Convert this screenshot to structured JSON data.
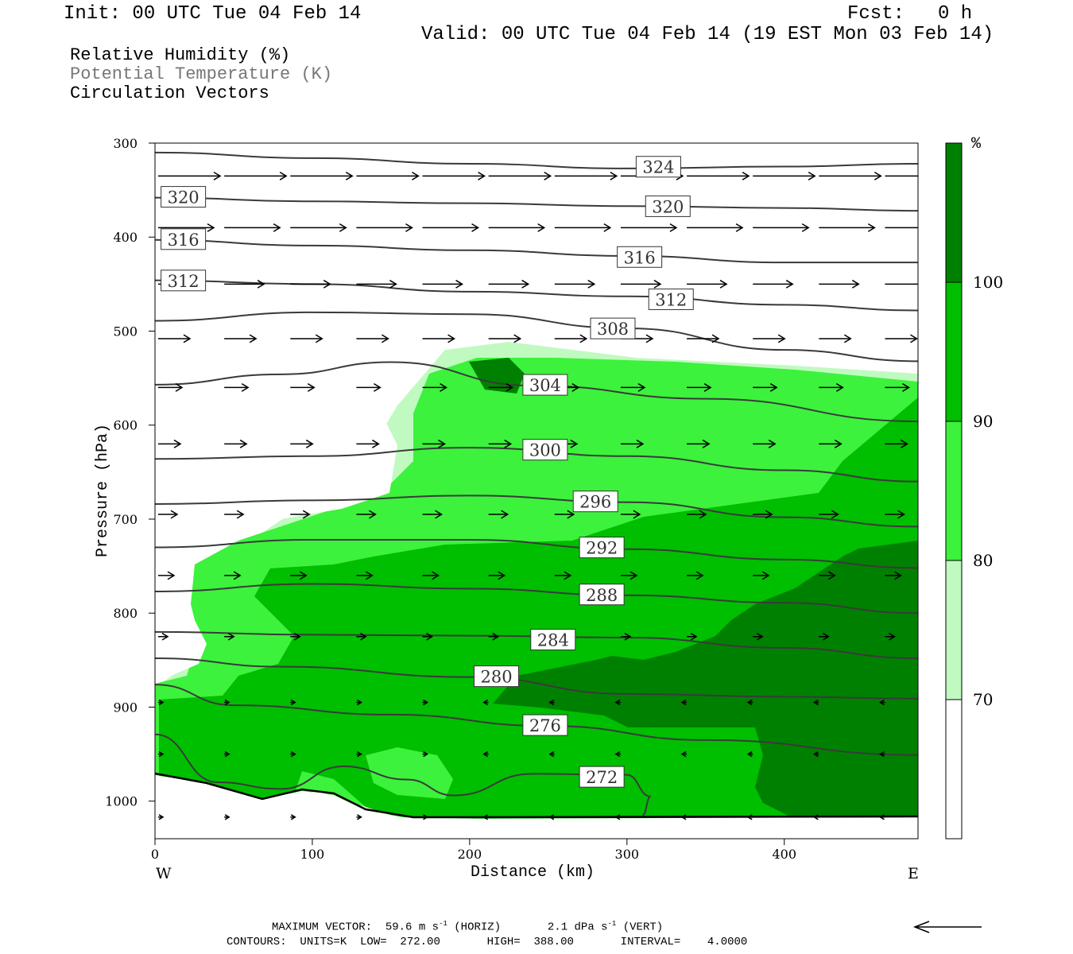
{
  "header": {
    "init": "Init: 00 UTC Tue 04 Feb 14",
    "fcst_label": "Fcst:",
    "fcst_value": "0 h",
    "valid": "Valid: 00 UTC Tue 04 Feb 14 (19 EST Mon 03 Feb 14)"
  },
  "titles": {
    "line1": "Relative Humidity (%)",
    "line2": "Potential Temperature (K)",
    "line3": "Circulation Vectors"
  },
  "colors": {
    "rh_70": "#c0fac0",
    "rh_80": "#3cf23c",
    "rh_90": "#00be00",
    "rh_100": "#008000",
    "theta_line": "#3a3a3a",
    "theta_label_dim": "#555555"
  },
  "footer": {
    "max_vector_label": "MAXIMUM VECTOR:",
    "max_vector_horiz": "59.6 m s",
    "horiz_unit": "(HORIZ)",
    "max_vector_vert": "2.1 dPa s",
    "vert_unit": "(VERT)",
    "exp": "-1",
    "contours_line": "CONTOURS:  UNITS=K  LOW=  272.00       HIGH=  388.00       INTERVAL=    4.0000"
  },
  "chart_data": {
    "type": "contour",
    "xlabel": "Distance (km)",
    "ylabel": "Pressure (hPa)",
    "xlim": [
      0,
      485
    ],
    "ylim": [
      1040,
      300
    ],
    "x_ticks": [
      0,
      100,
      200,
      300,
      400
    ],
    "y_ticks": [
      300,
      400,
      500,
      600,
      700,
      800,
      900,
      1000
    ],
    "x_end_labels": {
      "left": "W",
      "right": "E"
    },
    "colorbar": {
      "unit": "%",
      "levels": [
        70,
        80,
        90,
        100
      ],
      "level_labels": [
        "70",
        "80",
        "90",
        "100"
      ]
    },
    "theta_contours": [
      {
        "value": 324,
        "label": "324",
        "points": [
          [
            0,
            310
          ],
          [
            100,
            316
          ],
          [
            200,
            322
          ],
          [
            300,
            327
          ],
          [
            400,
            325
          ],
          [
            485,
            322
          ]
        ],
        "label_at": [
          320,
          326
        ]
      },
      {
        "value": 320,
        "label": "320",
        "points": [
          [
            0,
            358
          ],
          [
            100,
            362
          ],
          [
            200,
            364
          ],
          [
            300,
            367
          ],
          [
            400,
            369
          ],
          [
            485,
            372
          ]
        ],
        "labels_at": [
          [
            18,
            358
          ],
          [
            326,
            368
          ]
        ]
      },
      {
        "value": 316,
        "label": "316",
        "points": [
          [
            0,
            403
          ],
          [
            100,
            409
          ],
          [
            200,
            414
          ],
          [
            300,
            420
          ],
          [
            400,
            427
          ],
          [
            485,
            427
          ]
        ],
        "labels_at": [
          [
            18,
            403
          ],
          [
            308,
            422
          ]
        ]
      },
      {
        "value": 312,
        "label": "312",
        "points": [
          [
            0,
            446
          ],
          [
            100,
            450
          ],
          [
            200,
            458
          ],
          [
            300,
            463
          ],
          [
            400,
            472
          ],
          [
            485,
            478
          ]
        ],
        "labels_at": [
          [
            18,
            447
          ],
          [
            328,
            467
          ]
        ]
      },
      {
        "value": 308,
        "label": "308",
        "points": [
          [
            0,
            489
          ],
          [
            100,
            480
          ],
          [
            200,
            482
          ],
          [
            300,
            497
          ],
          [
            400,
            520
          ],
          [
            485,
            532
          ]
        ],
        "label_at": [
          291,
          498
        ]
      },
      {
        "value": 304,
        "label": "304",
        "points": [
          [
            0,
            557
          ],
          [
            80,
            546
          ],
          [
            150,
            533
          ],
          [
            240,
            558
          ],
          [
            350,
            572
          ],
          [
            485,
            596
          ]
        ],
        "label_at": [
          248,
          558
        ]
      },
      {
        "value": 300,
        "label": "300",
        "points": [
          [
            0,
            636
          ],
          [
            100,
            633
          ],
          [
            200,
            624
          ],
          [
            300,
            633
          ],
          [
            400,
            648
          ],
          [
            485,
            660
          ]
        ],
        "label_at": [
          248,
          627
        ]
      },
      {
        "value": 296,
        "label": "296",
        "points": [
          [
            0,
            684
          ],
          [
            100,
            680
          ],
          [
            200,
            675
          ],
          [
            300,
            682
          ],
          [
            400,
            698
          ],
          [
            485,
            708
          ]
        ],
        "label_at": [
          280,
          682
        ]
      },
      {
        "value": 292,
        "label": "292",
        "points": [
          [
            0,
            730
          ],
          [
            100,
            722
          ],
          [
            200,
            722
          ],
          [
            300,
            732
          ],
          [
            400,
            743
          ],
          [
            485,
            752
          ]
        ],
        "label_at": [
          284,
          731
        ]
      },
      {
        "value": 288,
        "label": "288",
        "points": [
          [
            0,
            777
          ],
          [
            100,
            769
          ],
          [
            200,
            774
          ],
          [
            300,
            781
          ],
          [
            400,
            789
          ],
          [
            485,
            800
          ]
        ],
        "label_at": [
          284,
          781
        ]
      },
      {
        "value": 284,
        "label": "284",
        "points": [
          [
            0,
            820
          ],
          [
            100,
            823
          ],
          [
            200,
            824
          ],
          [
            300,
            826
          ],
          [
            400,
            837
          ],
          [
            485,
            848
          ]
        ],
        "label_at": [
          253,
          829
        ]
      },
      {
        "value": 280,
        "label": "280",
        "points": [
          [
            0,
            848
          ],
          [
            80,
            857
          ],
          [
            200,
            868
          ],
          [
            300,
            886
          ],
          [
            400,
            889
          ],
          [
            485,
            891
          ]
        ],
        "label_at": [
          217,
          868
        ]
      },
      {
        "value": 276,
        "label": "276",
        "points": [
          [
            0,
            876
          ],
          [
            50,
            898
          ],
          [
            150,
            908
          ],
          [
            250,
            920
          ],
          [
            350,
            935
          ],
          [
            485,
            951
          ]
        ],
        "label_at": [
          248,
          920
        ]
      },
      {
        "value": 272,
        "label": "272",
        "points": [
          [
            0,
            929
          ],
          [
            40,
            980
          ],
          [
            80,
            987
          ],
          [
            120,
            963
          ],
          [
            160,
            977
          ],
          [
            190,
            994
          ],
          [
            240,
            971
          ],
          [
            300,
            972
          ],
          [
            315,
            995
          ],
          [
            310,
            1015
          ]
        ],
        "label_at": [
          284,
          975
        ]
      }
    ],
    "vectors": {
      "rows_pressure": [
        335,
        390,
        450,
        508,
        560,
        620,
        695,
        760,
        825,
        895,
        950,
        1017
      ],
      "description": "westerly circulation vectors, strongest aloft"
    }
  }
}
